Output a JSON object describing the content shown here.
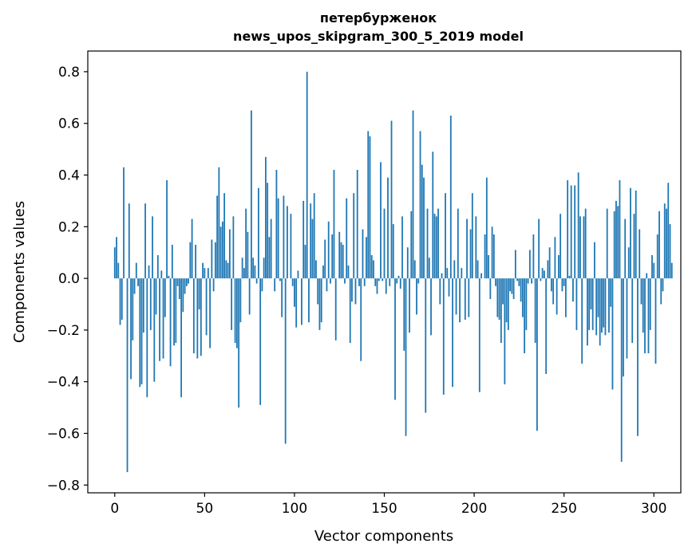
{
  "chart_data": {
    "type": "bar",
    "title_line1": "петербурженок",
    "title_line2": "news_upos_skipgram_300_5_2019 model",
    "xlabel": "Vector components",
    "ylabel": "Components values",
    "xlim": [
      -15,
      315
    ],
    "ylim": [
      -0.83,
      0.88
    ],
    "xticks": [
      0,
      50,
      100,
      150,
      200,
      250,
      300
    ],
    "xtick_labels": [
      "0",
      "50",
      "100",
      "150",
      "200",
      "250",
      "300"
    ],
    "yticks": [
      0.8,
      0.6,
      0.4,
      0.2,
      0.0,
      -0.2,
      -0.4,
      -0.6,
      -0.8
    ],
    "ytick_labels": [
      "0.8",
      "0.6",
      "0.4",
      "0.2",
      "0.0",
      "−0.2",
      "−0.4",
      "−0.6",
      "−0.8"
    ],
    "bar_color": "#1f77b4",
    "values": [
      0.12,
      0.16,
      0.06,
      -0.18,
      -0.16,
      0.43,
      0.0,
      -0.75,
      0.29,
      -0.39,
      -0.24,
      -0.06,
      0.06,
      -0.03,
      -0.42,
      -0.41,
      -0.21,
      0.29,
      -0.46,
      0.05,
      -0.2,
      0.24,
      -0.4,
      -0.14,
      0.09,
      -0.32,
      0.03,
      -0.31,
      -0.15,
      0.38,
      0.01,
      -0.34,
      0.13,
      -0.26,
      -0.25,
      -0.03,
      -0.08,
      -0.46,
      -0.13,
      -0.06,
      -0.03,
      -0.02,
      0.14,
      0.23,
      -0.29,
      0.13,
      -0.31,
      -0.12,
      -0.3,
      0.06,
      0.04,
      -0.22,
      0.04,
      -0.27,
      0.15,
      -0.05,
      0.14,
      0.32,
      0.43,
      0.2,
      0.22,
      0.33,
      0.07,
      0.06,
      0.19,
      -0.2,
      0.24,
      -0.25,
      -0.27,
      -0.5,
      -0.17,
      0.08,
      0.04,
      0.27,
      0.18,
      -0.14,
      0.65,
      0.08,
      0.05,
      -0.02,
      0.35,
      -0.49,
      -0.05,
      0.08,
      0.47,
      0.37,
      0.16,
      0.23,
      0.0,
      -0.05,
      0.42,
      0.31,
      -0.01,
      -0.15,
      0.32,
      -0.64,
      0.28,
      0.0,
      0.25,
      -0.03,
      -0.11,
      -0.19,
      0.03,
      0.0,
      -0.18,
      0.3,
      0.13,
      0.8,
      -0.17,
      0.29,
      0.23,
      0.33,
      0.07,
      -0.1,
      -0.2,
      -0.17,
      0.05,
      0.15,
      -0.05,
      0.22,
      -0.02,
      0.17,
      0.42,
      -0.24,
      0.0,
      0.18,
      0.14,
      0.13,
      -0.02,
      0.31,
      0.05,
      -0.25,
      -0.09,
      0.33,
      -0.1,
      0.42,
      -0.03,
      -0.32,
      0.19,
      -0.03,
      0.16,
      0.57,
      0.55,
      0.09,
      0.07,
      -0.03,
      -0.06,
      -0.01,
      0.45,
      -0.01,
      0.27,
      -0.06,
      0.39,
      -0.03,
      0.61,
      0.21,
      -0.47,
      -0.02,
      0.01,
      -0.04,
      0.24,
      -0.28,
      -0.61,
      0.12,
      -0.21,
      0.26,
      0.65,
      0.07,
      -0.14,
      -0.02,
      0.57,
      0.44,
      0.39,
      -0.52,
      0.27,
      0.08,
      -0.22,
      0.49,
      0.25,
      0.24,
      0.27,
      -0.1,
      0.02,
      -0.45,
      0.33,
      0.04,
      -0.07,
      0.63,
      -0.42,
      0.07,
      -0.14,
      0.27,
      -0.17,
      0.04,
      0.0,
      -0.16,
      0.23,
      -0.15,
      0.19,
      0.33,
      0.0,
      0.24,
      0.07,
      -0.44,
      0.02,
      0.0,
      0.17,
      0.39,
      0.09,
      -0.08,
      0.2,
      0.17,
      -0.03,
      -0.15,
      -0.16,
      -0.25,
      -0.1,
      -0.41,
      -0.17,
      -0.2,
      -0.05,
      -0.06,
      -0.08,
      0.11,
      -0.01,
      -0.03,
      -0.09,
      -0.15,
      -0.29,
      -0.2,
      -0.02,
      0.11,
      -0.02,
      0.17,
      -0.25,
      -0.59,
      0.23,
      -0.01,
      0.04,
      0.03,
      -0.37,
      0.07,
      0.12,
      -0.05,
      -0.1,
      0.16,
      -0.14,
      0.09,
      0.25,
      -0.05,
      -0.03,
      -0.15,
      0.38,
      0.01,
      0.36,
      -0.09,
      0.36,
      -0.2,
      0.41,
      0.24,
      -0.33,
      0.24,
      0.27,
      -0.26,
      -0.2,
      -0.12,
      -0.2,
      0.14,
      -0.22,
      -0.15,
      -0.26,
      -0.21,
      -0.19,
      -0.22,
      0.27,
      -0.21,
      -0.11,
      -0.43,
      0.26,
      0.3,
      0.28,
      0.38,
      -0.71,
      -0.38,
      0.23,
      -0.31,
      0.12,
      0.35,
      -0.25,
      0.25,
      0.34,
      -0.61,
      0.19,
      -0.1,
      -0.21,
      -0.29,
      0.02,
      -0.29,
      -0.2,
      0.09,
      0.06,
      -0.33,
      0.17,
      0.26,
      -0.1,
      -0.05,
      0.29,
      0.27,
      0.37,
      0.21,
      0.06
    ]
  }
}
